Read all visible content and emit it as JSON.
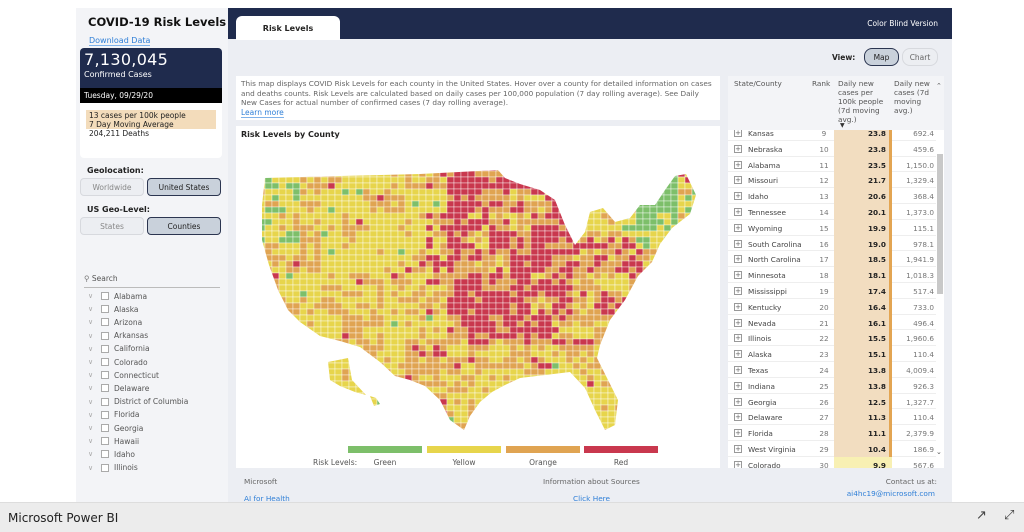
{
  "sidebar": {
    "title": "COVID-19 Risk Levels",
    "download": "Download Data",
    "card": {
      "total": "7,130,045",
      "total_label": "Confirmed Cases",
      "date": "Tuesday, 09/29/20",
      "rate": "13 cases per 100k people",
      "avg": "7 Day Moving Average",
      "deaths": "204,211 Deaths"
    },
    "geolocation": {
      "label": "Geolocation:",
      "options": [
        "Worldwide",
        "United States"
      ],
      "selected": "United States"
    },
    "geolevel": {
      "label": "US Geo-Level:",
      "options": [
        "States",
        "Counties"
      ],
      "selected": "Counties"
    },
    "search_placeholder": "Search",
    "states": [
      "Alabama",
      "Alaska",
      "Arizona",
      "Arkansas",
      "California",
      "Colorado",
      "Connecticut",
      "Delaware",
      "District of Columbia",
      "Florida",
      "Georgia",
      "Hawaii",
      "Idaho",
      "Illinois"
    ]
  },
  "header": {
    "tab": "Risk Levels",
    "color_blind": "Color Blind Version"
  },
  "view": {
    "label": "View:",
    "options": [
      "Map",
      "Chart"
    ],
    "selected": "Map"
  },
  "description": {
    "text": "This map displays COVID Risk Levels for each county in the United States. Hover over a county for detailed information on cases and deaths counts. Risk Levels are calculated based on daily cases per 100,000 population (7 day rolling average). See Daily New Cases for actual number of confirmed cases (7 day rolling average).",
    "learn_more": "Learn more"
  },
  "map": {
    "title": "Risk Levels by County",
    "legend_label": "Risk Levels:",
    "levels": [
      {
        "name": "Green",
        "color": "#7dbf6a"
      },
      {
        "name": "Yellow",
        "color": "#e7d54c"
      },
      {
        "name": "Orange",
        "color": "#e0a452"
      },
      {
        "name": "Red",
        "color": "#c9384e"
      }
    ]
  },
  "table": {
    "headers": [
      "State/County",
      "Rank",
      "Daily new cases per 100k people (7d moving avg.)",
      "Daily new cases (7d moving avg.)"
    ],
    "rows": [
      [
        "Kansas",
        "9",
        "23.8",
        "692.4"
      ],
      [
        "Nebraska",
        "10",
        "23.8",
        "459.6"
      ],
      [
        "Alabama",
        "11",
        "23.5",
        "1,150.0"
      ],
      [
        "Missouri",
        "12",
        "21.7",
        "1,329.4"
      ],
      [
        "Idaho",
        "13",
        "20.6",
        "368.4"
      ],
      [
        "Tennessee",
        "14",
        "20.1",
        "1,373.0"
      ],
      [
        "Wyoming",
        "15",
        "19.9",
        "115.1"
      ],
      [
        "South Carolina",
        "16",
        "19.0",
        "978.1"
      ],
      [
        "North Carolina",
        "17",
        "18.5",
        "1,941.9"
      ],
      [
        "Minnesota",
        "18",
        "18.1",
        "1,018.3"
      ],
      [
        "Mississippi",
        "19",
        "17.4",
        "517.4"
      ],
      [
        "Kentucky",
        "20",
        "16.4",
        "733.0"
      ],
      [
        "Nevada",
        "21",
        "16.1",
        "496.4"
      ],
      [
        "Illinois",
        "22",
        "15.5",
        "1,960.6"
      ],
      [
        "Alaska",
        "23",
        "15.1",
        "110.4"
      ],
      [
        "Texas",
        "24",
        "13.8",
        "4,009.4"
      ],
      [
        "Indiana",
        "25",
        "13.8",
        "926.3"
      ],
      [
        "Georgia",
        "26",
        "12.5",
        "1,327.7"
      ],
      [
        "Delaware",
        "27",
        "11.3",
        "110.4"
      ],
      [
        "Florida",
        "28",
        "11.1",
        "2,379.9"
      ],
      [
        "West Virginia",
        "29",
        "10.4",
        "186.9"
      ],
      [
        "Colorado",
        "30",
        "9.9",
        "567.6"
      ]
    ]
  },
  "footer": {
    "ms": "Microsoft",
    "ai": "AI for Health",
    "info": "Information about Sources",
    "click": "Click Here",
    "contact": "Contact us at:",
    "email": "ai4hc19@microsoft.com"
  },
  "app": {
    "name": "Microsoft Power BI"
  }
}
